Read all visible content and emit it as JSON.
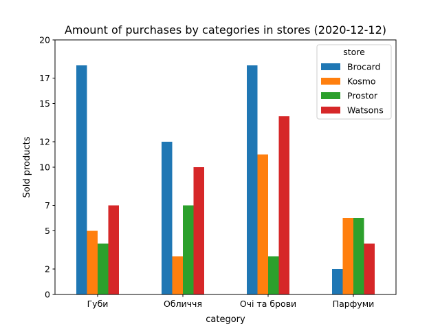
{
  "chart_data": {
    "type": "bar",
    "title": "Amount of purchases by categories in stores (2020-12-12)",
    "xlabel": "category",
    "ylabel": "Sold products",
    "categories": [
      "Губи",
      "Обличчя",
      "Очі та брови",
      "Парфуми"
    ],
    "yticks": [
      0,
      2,
      5,
      7,
      10,
      12,
      15,
      17,
      20
    ],
    "ylim": [
      0,
      20
    ],
    "grid": false,
    "legend": {
      "title": "store",
      "placement": "top-right"
    },
    "series": [
      {
        "name": "Brocard",
        "color": "#1f77b4",
        "values": [
          18,
          12,
          18,
          2
        ]
      },
      {
        "name": "Kosmo",
        "color": "#ff7f0e",
        "values": [
          5,
          3,
          11,
          6
        ]
      },
      {
        "name": "Prostor",
        "color": "#2ca02c",
        "values": [
          4,
          7,
          3,
          6
        ]
      },
      {
        "name": "Watsons",
        "color": "#d62728",
        "values": [
          7,
          10,
          14,
          4
        ]
      }
    ]
  }
}
